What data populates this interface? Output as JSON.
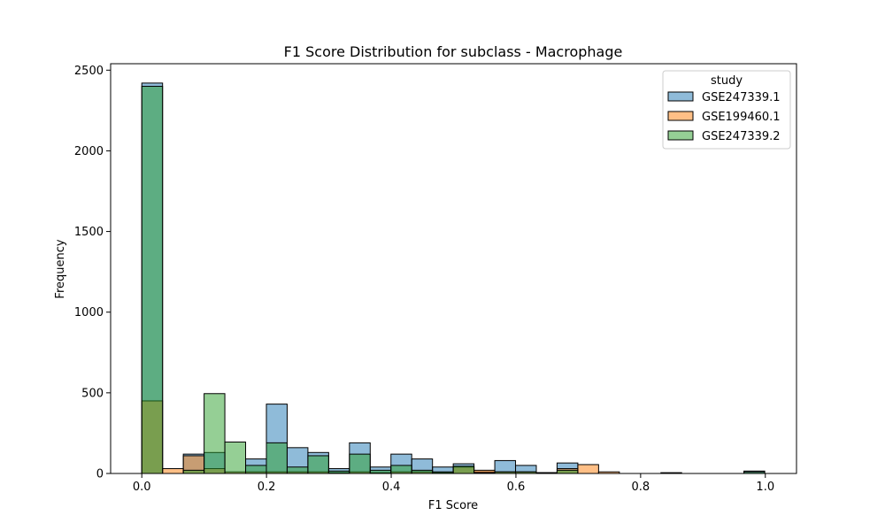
{
  "chart_data": {
    "type": "histogram",
    "title": "F1 Score Distribution for subclass - Macrophage",
    "xlabel": "F1 Score",
    "ylabel": "Frequency",
    "xlim": [
      -0.05,
      1.05
    ],
    "ylim": [
      0,
      2540
    ],
    "xticks": [
      0.0,
      0.2,
      0.4,
      0.6,
      0.8,
      1.0
    ],
    "xtick_labels": [
      "0.0",
      "0.2",
      "0.4",
      "0.6",
      "0.8",
      "1.0"
    ],
    "yticks": [
      0,
      500,
      1000,
      1500,
      2000,
      2500
    ],
    "ytick_labels": [
      "0",
      "500",
      "1000",
      "1500",
      "2000",
      "2500"
    ],
    "bins": {
      "start": 0.0,
      "width": 0.0333,
      "count": 30
    },
    "legend": {
      "title": "study",
      "placement": "top-right"
    },
    "series": [
      {
        "name": "GSE247339.1",
        "color": "#1f77b4",
        "values": [
          2420,
          0,
          120,
          130,
          0,
          90,
          430,
          160,
          130,
          30,
          190,
          40,
          120,
          90,
          40,
          60,
          10,
          80,
          50,
          5,
          65,
          0,
          0,
          0,
          0,
          0,
          0,
          0,
          0,
          15
        ]
      },
      {
        "name": "GSE199460.1",
        "color": "#ff7f0e",
        "values": [
          450,
          30,
          110,
          30,
          10,
          10,
          10,
          10,
          10,
          5,
          10,
          5,
          10,
          10,
          5,
          40,
          20,
          10,
          10,
          5,
          30,
          55,
          10,
          0,
          0,
          5,
          0,
          0,
          0,
          0
        ]
      },
      {
        "name": "GSE247339.2",
        "color": "#2ca02c",
        "values": [
          2400,
          0,
          20,
          495,
          195,
          50,
          190,
          40,
          110,
          15,
          120,
          20,
          50,
          20,
          10,
          45,
          5,
          10,
          10,
          5,
          20,
          0,
          0,
          0,
          0,
          0,
          0,
          0,
          0,
          10
        ]
      }
    ]
  }
}
